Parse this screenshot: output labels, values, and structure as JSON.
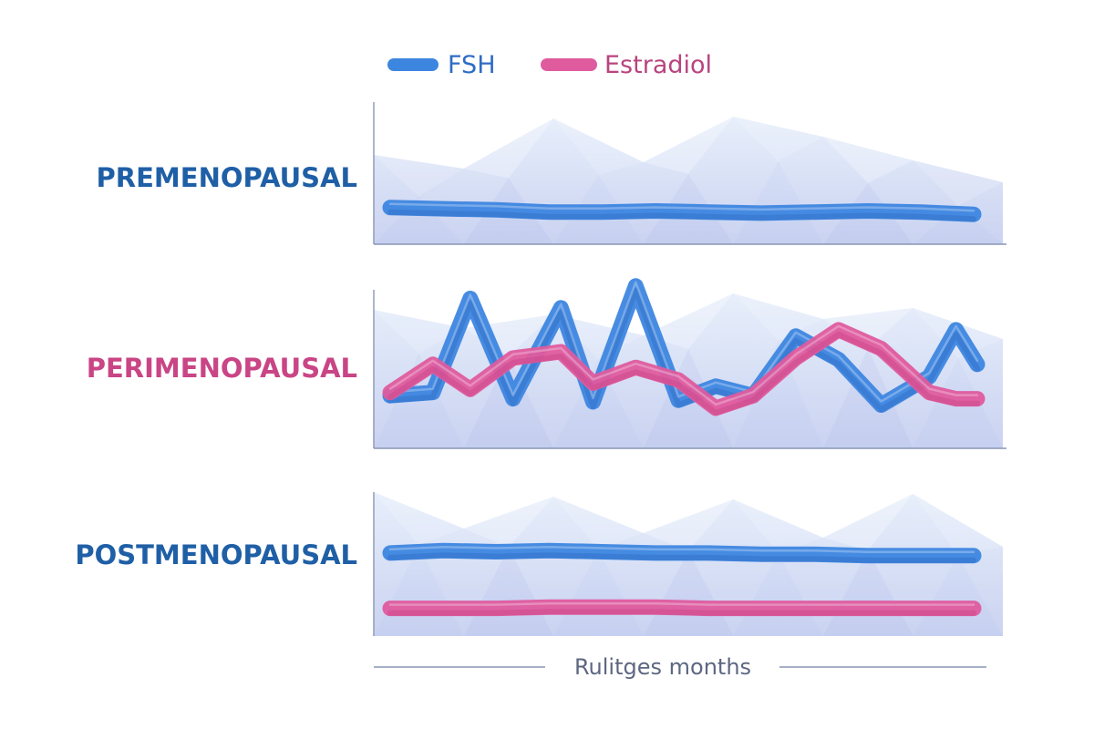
{
  "colors": {
    "fsh": "#3d86e0",
    "fsh_dark": "#2f6cc4",
    "estradiol": "#df5b9e",
    "estradiol_dark": "#c94587",
    "label_blue": "#1f5fa6",
    "label_pink": "#c94585",
    "legend_fsh_text": "#2f6cc4",
    "legend_estradiol_text": "#b8447e",
    "axis": "#8a96b4",
    "caption": "#5d6781",
    "background_facet_light": "#e6eefb",
    "background_facet_dark": "#c7d0f0"
  },
  "legend": {
    "items": [
      {
        "key": "fsh",
        "label": "FSH",
        "icon": "legend-swatch-fsh"
      },
      {
        "key": "estradiol",
        "label": "Estradiol",
        "icon": "legend-swatch-estradiol"
      }
    ]
  },
  "xaxis": {
    "caption": "Rulitges months"
  },
  "chart_data": [
    {
      "type": "line",
      "title": "PREMENOPAUSAL",
      "title_color": "label_blue",
      "x": [
        0,
        1,
        2,
        3,
        4,
        5,
        6,
        7,
        8,
        9,
        10,
        11
      ],
      "ylim": [
        0,
        100
      ],
      "series": [
        {
          "name": "FSH",
          "key": "fsh",
          "values": [
            28,
            27,
            26,
            24,
            24,
            25,
            24,
            23,
            24,
            25,
            24,
            22
          ]
        }
      ]
    },
    {
      "type": "line",
      "title": "PERIMENOPAUSAL",
      "title_color": "label_pink",
      "x": [
        0,
        0.8,
        1.5,
        2.3,
        3.2,
        3.8,
        4.6,
        5.4,
        6.1,
        6.8,
        7.6,
        8.4,
        9.2,
        10.1,
        10.6,
        11
      ],
      "ylim": [
        0,
        100
      ],
      "series": [
        {
          "name": "FSH",
          "key": "fsh",
          "values": [
            22,
            24,
            84,
            20,
            78,
            18,
            92,
            19,
            28,
            22,
            60,
            45,
            16,
            34,
            64,
            42
          ]
        },
        {
          "name": "Estradiol",
          "key": "estradiol",
          "values": [
            24,
            42,
            26,
            46,
            50,
            30,
            40,
            32,
            14,
            22,
            46,
            64,
            52,
            24,
            20,
            20
          ]
        }
      ]
    },
    {
      "type": "line",
      "title": "POSTMENOPAUSAL",
      "title_color": "label_blue",
      "x": [
        0,
        1,
        2,
        3,
        4,
        5,
        6,
        7,
        8,
        9,
        10,
        11
      ],
      "ylim": [
        0,
        100
      ],
      "series": [
        {
          "name": "FSH",
          "key": "fsh",
          "values": [
            66,
            68,
            67,
            68,
            67,
            66,
            66,
            65,
            65,
            64,
            64,
            64
          ]
        },
        {
          "name": "Estradiol",
          "key": "estradiol",
          "values": [
            22,
            22,
            22,
            23,
            23,
            23,
            22,
            22,
            22,
            22,
            22,
            22
          ]
        }
      ]
    }
  ]
}
